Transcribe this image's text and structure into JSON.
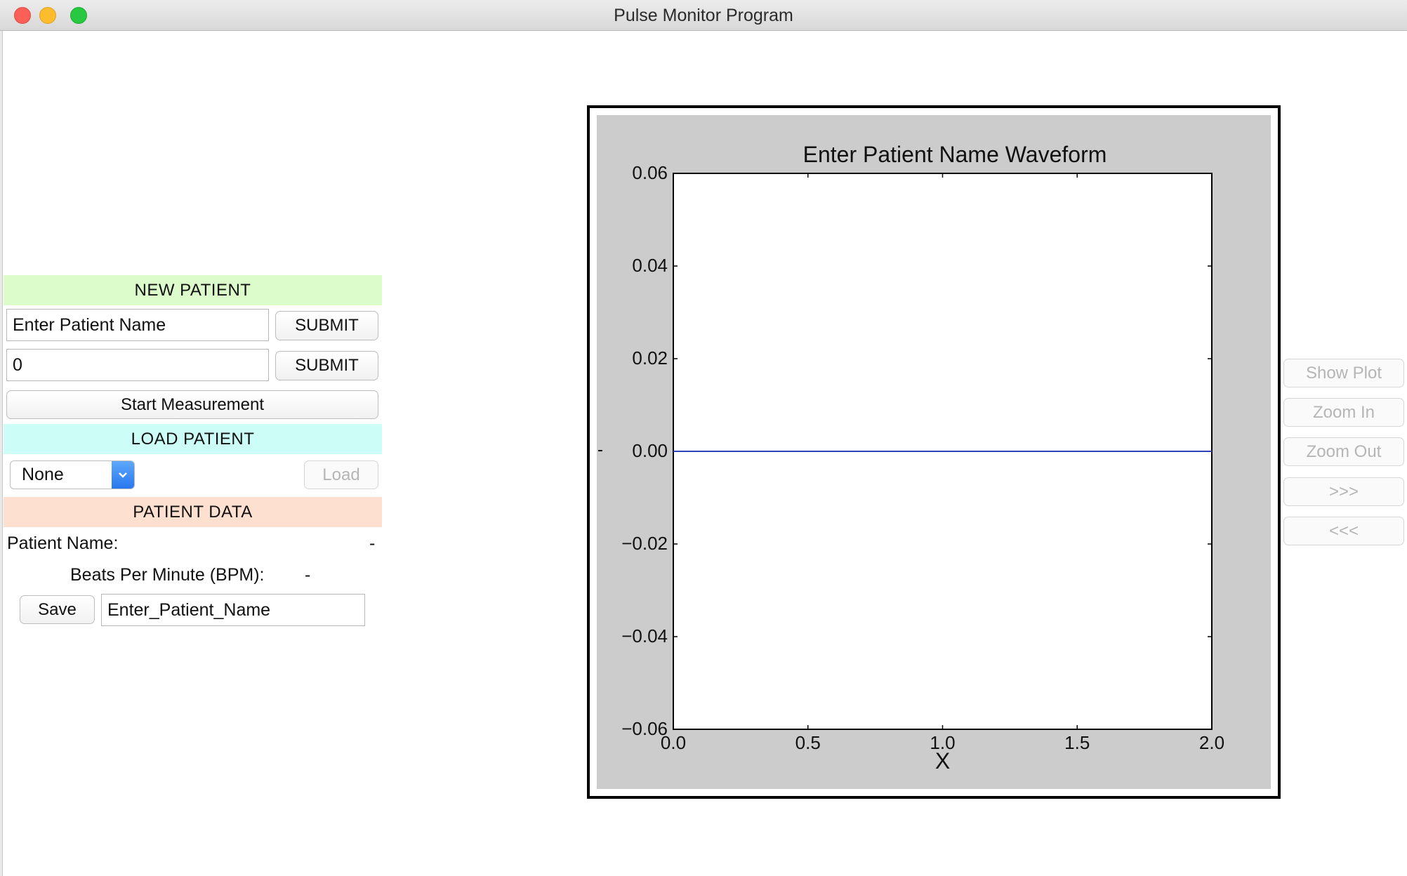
{
  "window": {
    "title": "Pulse Monitor Program"
  },
  "new_patient": {
    "header": "NEW PATIENT",
    "name_input_value": "Enter Patient Name",
    "name_submit_label": "SUBMIT",
    "id_input_value": "0",
    "id_submit_label": "SUBMIT",
    "start_measurement_label": "Start Measurement"
  },
  "load_patient": {
    "header": "LOAD PATIENT",
    "dropdown_selected": "None",
    "load_label": "Load"
  },
  "patient_data": {
    "header": "PATIENT DATA",
    "name_label": "Patient Name:",
    "name_value": "-",
    "bpm_label": "Beats Per Minute (BPM):",
    "bpm_value": "-",
    "save_label": "Save",
    "filename_value": "Enter_Patient_Name"
  },
  "plot_controls": {
    "show_plot": "Show Plot",
    "zoom_in": "Zoom In",
    "zoom_out": "Zoom Out",
    "next": ">>>",
    "prev": "<<<"
  },
  "colors": {
    "new_patient_bg": "#dcfccc",
    "load_patient_bg": "#ccfdf6",
    "patient_data_bg": "#fee0d0",
    "series_line": "#2f43b8"
  },
  "chart_data": {
    "type": "line",
    "title": "Enter Patient Name Waveform",
    "xlabel": "X",
    "ylabel": "",
    "xlim": [
      0.0,
      2.0
    ],
    "ylim": [
      -0.06,
      0.06
    ],
    "x_ticks": [
      "0.0",
      "0.5",
      "1.0",
      "1.5",
      "2.0"
    ],
    "y_ticks": [
      "0.06",
      "0.04",
      "0.02",
      "0.00",
      "−0.02",
      "−0.04",
      "−0.06"
    ],
    "x_tick_values": [
      0.0,
      0.5,
      1.0,
      1.5,
      2.0
    ],
    "y_tick_values": [
      0.06,
      0.04,
      0.02,
      0.0,
      -0.02,
      -0.04,
      -0.06
    ],
    "grid": false,
    "series": [
      {
        "x": [
          0.0,
          2.0
        ],
        "y": [
          0.0,
          0.0
        ]
      }
    ]
  }
}
